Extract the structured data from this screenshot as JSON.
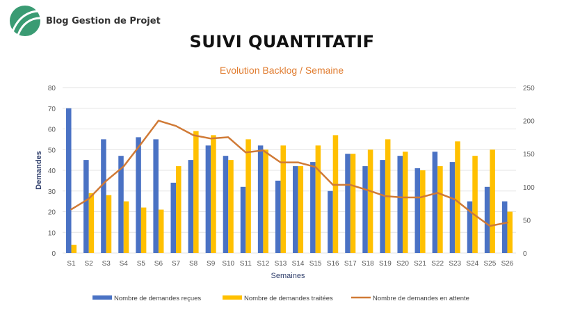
{
  "brand": {
    "name": "Blog Gestion de Projet"
  },
  "page": {
    "heading": "SUIVI QUANTITATIF"
  },
  "colors": {
    "received": "#4a72c4",
    "processed": "#ffc000",
    "pending": "#d07a36",
    "title": "#e07b2e"
  },
  "chart_data": {
    "type": "bar",
    "title": "Evolution Backlog / Semaine",
    "xlabel": "Semaines",
    "ylabel": "Demandes",
    "ylim": [
      0,
      80
    ],
    "y_ticks": [
      "0",
      "10",
      "20",
      "30",
      "40",
      "50",
      "60",
      "70",
      "80"
    ],
    "y2lim": [
      0,
      250
    ],
    "y2_ticks": [
      "0",
      "50",
      "100",
      "150",
      "200",
      "250"
    ],
    "grid": true,
    "legend_position": "bottom",
    "categories": [
      "S1",
      "S2",
      "S3",
      "S4",
      "S5",
      "S6",
      "S7",
      "S8",
      "S9",
      "S10",
      "S11",
      "S12",
      "S13",
      "S14",
      "S15",
      "S16",
      "S17",
      "S18",
      "S19",
      "S20",
      "S21",
      "S22",
      "S23",
      "S24",
      "S25",
      "S26"
    ],
    "series": [
      {
        "name": "Nombre de demandes reçues",
        "type": "bar",
        "axis": "left",
        "values": [
          70,
          45,
          55,
          47,
          56,
          55,
          34,
          45,
          52,
          47,
          32,
          52,
          35,
          42,
          44,
          30,
          48,
          42,
          45,
          47,
          41,
          49,
          44,
          25,
          32,
          25
        ]
      },
      {
        "name": "Nombre de demandes traitées",
        "type": "bar",
        "axis": "left",
        "values": [
          4,
          29,
          28,
          25,
          22,
          21,
          42,
          59,
          57,
          45,
          55,
          50,
          52,
          42,
          52,
          57,
          48,
          50,
          55,
          49,
          40,
          42,
          54,
          47,
          50,
          20
        ]
      },
      {
        "name": "Nombre de demandes en attente",
        "type": "line",
        "axis": "right",
        "values": [
          66,
          82,
          109,
          131,
          165,
          200,
          192,
          178,
          173,
          175,
          152,
          155,
          137,
          137,
          130,
          103,
          103,
          95,
          86,
          84,
          84,
          91,
          81,
          60,
          41,
          46
        ]
      }
    ]
  }
}
